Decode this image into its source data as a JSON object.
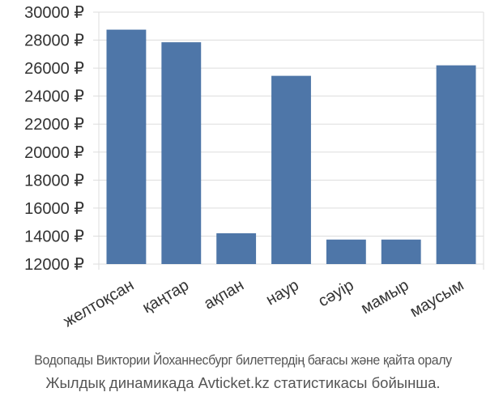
{
  "chart_data": {
    "type": "bar",
    "categories": [
      "желтоқсан",
      "қаңтар",
      "ақпан",
      "наур",
      "сәуір",
      "мамыр",
      "маусым"
    ],
    "values": [
      28750,
      27850,
      14200,
      25450,
      13750,
      13750,
      26200
    ],
    "y_ticks": [
      12000,
      14000,
      16000,
      18000,
      20000,
      22000,
      24000,
      26000,
      28000,
      30000
    ],
    "y_tick_labels": [
      "12000 ₽",
      "14000 ₽",
      "16000 ₽",
      "18000 ₽",
      "20000 ₽",
      "22000 ₽",
      "24000 ₽",
      "26000 ₽",
      "28000 ₽",
      "30000 ₽"
    ],
    "ylim": [
      12000,
      30000
    ],
    "grid": true,
    "title": "",
    "xlabel": "",
    "ylabel": "",
    "bar_color": "#4e76a8",
    "grid_color": "#dddddd"
  },
  "caption": {
    "line1": "Водопады Виктории Йоханнесбург билеттердің бағасы және қайта оралу",
    "line2": "Жылдық динамикада Avticket.kz статистикасы бойынша."
  }
}
